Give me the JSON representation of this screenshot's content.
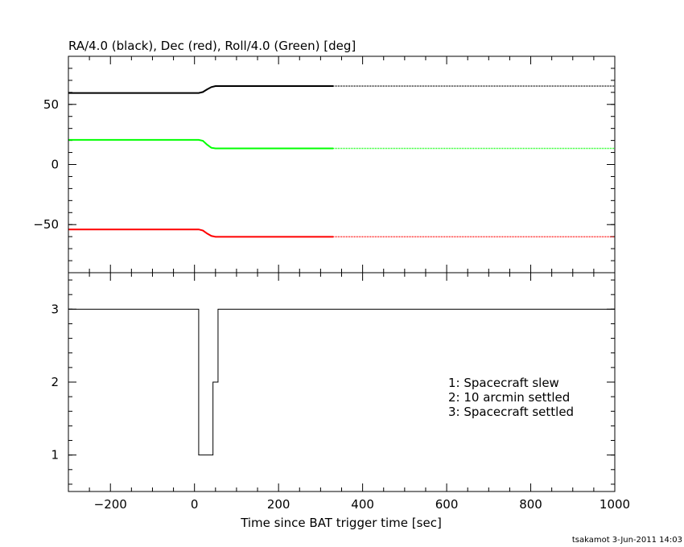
{
  "chart_data": [
    {
      "type": "line",
      "title": "RA/4.0 (black), Dec (red), Roll/4.0 (Green) [deg]",
      "xlim": [
        -300,
        1000
      ],
      "ylim": [
        -90,
        90
      ],
      "yticks": [
        -50,
        0,
        50
      ],
      "ytick_labels": [
        "−50",
        "0",
        "50"
      ],
      "solid_until_x": 330,
      "series": [
        {
          "color": "#000000",
          "x": [
            -300,
            10,
            20,
            30,
            40,
            50,
            330,
            1000
          ],
          "y": [
            59.5,
            59.5,
            60.3,
            62.5,
            64.4,
            65.2,
            65.2,
            65.2
          ]
        },
        {
          "color": "#ff0000",
          "x": [
            -300,
            10,
            20,
            30,
            40,
            50,
            330,
            1000
          ],
          "y": [
            -54.0,
            -54.0,
            -54.9,
            -57.4,
            -59.4,
            -60.1,
            -60.1,
            -60.1
          ]
        },
        {
          "color": "#00ff00",
          "x": [
            -300,
            10,
            20,
            30,
            40,
            50,
            330,
            1000
          ],
          "y": [
            20.5,
            20.5,
            19.7,
            16.5,
            13.9,
            13.4,
            13.4,
            13.4
          ]
        }
      ]
    },
    {
      "type": "line",
      "step": true,
      "xlim": [
        -300,
        1000
      ],
      "ylim": [
        0.5,
        3.5
      ],
      "yticks": [
        1,
        2,
        3
      ],
      "ytick_labels": [
        "1",
        "2",
        "3"
      ],
      "xticks": [
        -200,
        0,
        200,
        400,
        600,
        800,
        1000
      ],
      "xtick_labels": [
        "−200",
        "0",
        "200",
        "400",
        "600",
        "800",
        "1000"
      ],
      "xlabel": "Time since BAT trigger time [sec]",
      "series": [
        {
          "color": "#000000",
          "x": [
            -300,
            10,
            10,
            44,
            44,
            56,
            56,
            1000
          ],
          "y": [
            3,
            3,
            1,
            1,
            2,
            2,
            3,
            3
          ]
        }
      ],
      "annotations": [
        "1: Spacecraft slew",
        "2: 10 arcmin settled",
        "3: Spacecraft settled"
      ]
    }
  ],
  "footer": "tsakamot  3-Jun-2011 14:03"
}
